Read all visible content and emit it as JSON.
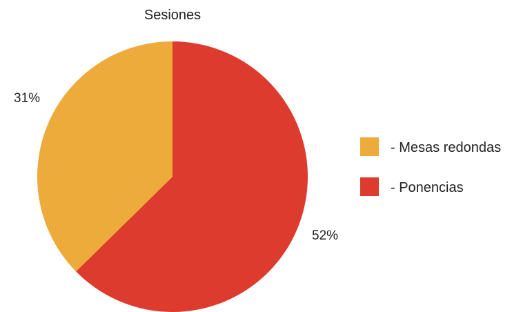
{
  "chart_data": {
    "type": "pie",
    "title": "Sesiones",
    "slices": [
      {
        "name": "Ponencias",
        "value": 52,
        "label": "52%",
        "color": "#dd3b2e"
      },
      {
        "name": "Mesas redondas",
        "value": 31,
        "label": "31%",
        "color": "#ecab3a"
      }
    ],
    "legend": {
      "placement": "right",
      "entries": [
        {
          "text": "- Mesas redondas",
          "color": "#ecab3a"
        },
        {
          "text": "- Ponencias",
          "color": "#dd3b2e"
        }
      ]
    }
  }
}
